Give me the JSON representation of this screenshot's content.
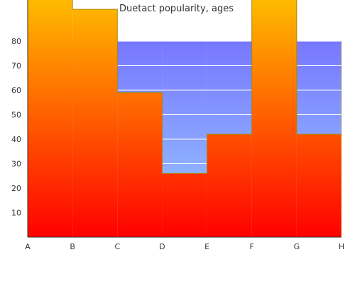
{
  "chart_data": {
    "type": "area",
    "title": "Duetact popularity, ages",
    "categories": [
      "A",
      "B",
      "C",
      "D",
      "E",
      "F",
      "G",
      "H"
    ],
    "y_ticks": [
      10,
      20,
      30,
      40,
      50,
      60,
      70,
      80
    ],
    "ylim": [
      0,
      97
    ],
    "grid": true,
    "step": true,
    "series": [
      {
        "values": [
          97,
          93,
          59,
          26,
          42,
          97,
          42,
          80
        ]
      },
      {
        "values": [
          80,
          80,
          80,
          80,
          80,
          80,
          80,
          80
        ]
      }
    ],
    "colors": {
      "upper_gradient_top": "#7777ff",
      "upper_gradient_bottom": "#99ccff",
      "lower_gradient_top": "#ffbb00",
      "lower_gradient_bottom": "#ff0000",
      "step_line": "#aa8800",
      "grid": "#ffffff",
      "axis": "#333333"
    }
  }
}
